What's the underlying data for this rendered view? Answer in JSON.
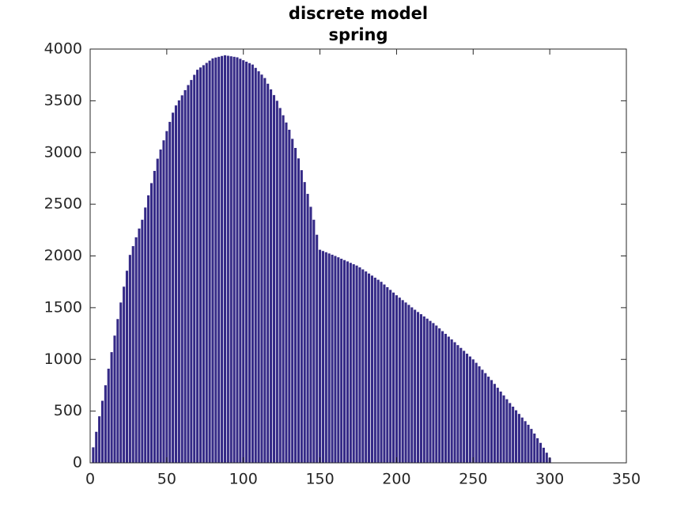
{
  "chart_data": {
    "type": "bar",
    "title": [
      "discrete model",
      "spring"
    ],
    "color": "#352a87",
    "x": [
      2,
      4,
      6,
      8,
      10,
      12,
      14,
      16,
      18,
      20,
      22,
      24,
      26,
      28,
      30,
      32,
      34,
      36,
      38,
      40,
      42,
      44,
      46,
      48,
      50,
      52,
      54,
      56,
      58,
      60,
      62,
      64,
      66,
      68,
      70,
      72,
      74,
      76,
      78,
      80,
      82,
      84,
      86,
      88,
      90,
      92,
      94,
      96,
      98,
      100,
      102,
      104,
      106,
      108,
      110,
      112,
      114,
      116,
      118,
      120,
      122,
      124,
      126,
      128,
      130,
      132,
      134,
      136,
      138,
      140,
      142,
      144,
      146,
      148,
      150,
      152,
      154,
      156,
      158,
      160,
      162,
      164,
      166,
      168,
      170,
      172,
      174,
      176,
      178,
      180,
      182,
      184,
      186,
      188,
      190,
      192,
      194,
      196,
      198,
      200,
      202,
      204,
      206,
      208,
      210,
      212,
      214,
      216,
      218,
      220,
      222,
      224,
      226,
      228,
      230,
      232,
      234,
      236,
      238,
      240,
      242,
      244,
      246,
      248,
      250,
      252,
      254,
      256,
      258,
      260,
      262,
      264,
      266,
      268,
      270,
      272,
      274,
      276,
      278,
      280,
      282,
      284,
      286,
      288,
      290,
      292,
      294,
      296,
      298,
      300
    ],
    "values": [
      150,
      300,
      450,
      600,
      750,
      910,
      1070,
      1230,
      1390,
      1550,
      1703,
      1857,
      2010,
      2095,
      2180,
      2265,
      2350,
      2468,
      2586,
      2704,
      2822,
      2940,
      3029,
      3118,
      3207,
      3296,
      3385,
      3455,
      3504,
      3553,
      3603,
      3652,
      3701,
      3751,
      3800,
      3822,
      3844,
      3866,
      3888,
      3910,
      3918,
      3925,
      3933,
      3940,
      3935,
      3930,
      3925,
      3920,
      3906,
      3892,
      3878,
      3864,
      3850,
      3818,
      3785,
      3753,
      3720,
      3665,
      3610,
      3555,
      3500,
      3430,
      3360,
      3290,
      3220,
      3132,
      3044,
      2943,
      2829,
      2714,
      2600,
      2475,
      2350,
      2205,
      2060,
      2048,
      2036,
      2024,
      2012,
      2000,
      1987,
      1973,
      1960,
      1947,
      1933,
      1920,
      1907,
      1890,
      1870,
      1850,
      1830,
      1810,
      1790,
      1770,
      1750,
      1724,
      1698,
      1672,
      1646,
      1620,
      1597,
      1573,
      1550,
      1527,
      1503,
      1480,
      1458,
      1437,
      1415,
      1394,
      1372,
      1351,
      1327,
      1300,
      1273,
      1247,
      1220,
      1193,
      1166,
      1138,
      1111,
      1083,
      1055,
      1028,
      1000,
      967,
      933,
      900,
      867,
      833,
      800,
      763,
      726,
      689,
      652,
      615,
      578,
      543,
      508,
      473,
      438,
      403,
      368,
      328,
      283,
      238,
      193,
      146,
      98,
      50
    ],
    "xlim": [
      0,
      350
    ],
    "xticks": [
      0,
      50,
      100,
      150,
      200,
      250,
      300,
      350
    ],
    "ylim": [
      0,
      4000
    ],
    "yticks": [
      0,
      500,
      1000,
      1500,
      2000,
      2500,
      3000,
      3500,
      4000
    ]
  }
}
